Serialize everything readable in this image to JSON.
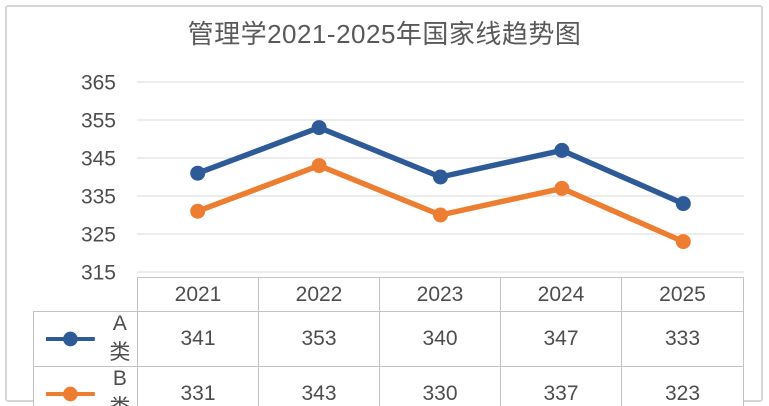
{
  "title": "管理学2021-2025年国家线趋势图",
  "colors": {
    "series_a": "#2e5b97",
    "series_b": "#ed7d31",
    "grid": "#e6e6e6",
    "axis_text": "#4d4d4d",
    "title_text": "#595959",
    "table_border": "#c3c3c3",
    "frame_border": "#d7d7d7"
  },
  "chart_data": {
    "type": "line",
    "title": "管理学2021-2025年国家线趋势图",
    "categories": [
      "2021",
      "2022",
      "2023",
      "2024",
      "2025"
    ],
    "series": [
      {
        "name": "A类",
        "values": [
          341,
          353,
          340,
          347,
          333
        ],
        "color": "#2e5b97"
      },
      {
        "name": "B类",
        "values": [
          331,
          343,
          330,
          337,
          323
        ],
        "color": "#ed7d31"
      }
    ],
    "xlabel": "",
    "ylabel": "",
    "ylim": [
      315,
      365
    ],
    "yticks": [
      365,
      355,
      345,
      335,
      325,
      315
    ],
    "grid": true,
    "markers": "circle",
    "legend_position": "left-of-data-table"
  },
  "y_axis": {
    "ticks": [
      "365",
      "355",
      "345",
      "335",
      "325",
      "315"
    ]
  },
  "table": {
    "years": [
      "2021",
      "2022",
      "2023",
      "2024",
      "2025"
    ],
    "rows": [
      {
        "label": "A类",
        "values": [
          "341",
          "353",
          "340",
          "347",
          "333"
        ]
      },
      {
        "label": "B类",
        "values": [
          "331",
          "343",
          "330",
          "337",
          "323"
        ]
      }
    ]
  }
}
